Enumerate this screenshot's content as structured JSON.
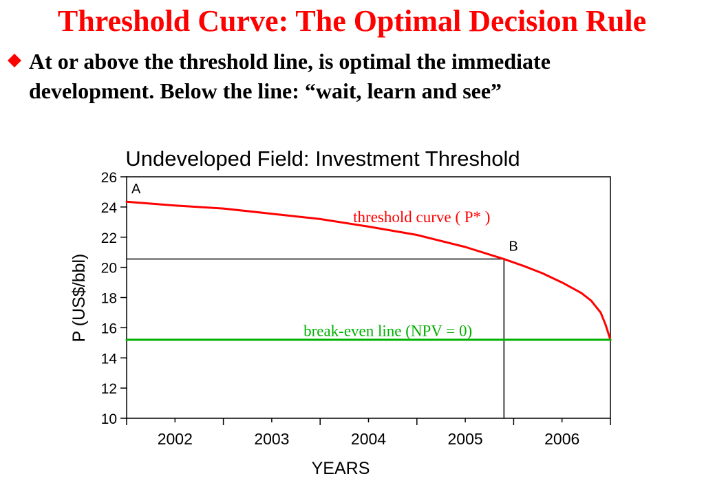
{
  "slide": {
    "title": "Threshold Curve: The Optimal Decision Rule",
    "bullet_icon": "red-diamond-bullet-icon",
    "bullet_line1": "At or above the threshold line, is optimal the immediate",
    "bullet_line2": "development. Below the line: “wait, learn and see”"
  },
  "chart_data": {
    "type": "line",
    "title": "Undeveloped Field: Investment Threshold",
    "xlabel": "YEARS",
    "ylabel": "P (US$/bbl)",
    "xlim": [
      2001.5,
      2006.5
    ],
    "ylim": [
      10,
      26
    ],
    "x_tick_labels": [
      "2002",
      "2003",
      "2004",
      "2005",
      "2006"
    ],
    "y_ticks": [
      10,
      12,
      14,
      16,
      18,
      20,
      22,
      24,
      26
    ],
    "grid": false,
    "series": [
      {
        "name": "threshold curve (P*)",
        "color": "#ff0000",
        "x": [
          2001.5,
          2002.0,
          2002.5,
          2003.0,
          2003.5,
          2004.0,
          2004.5,
          2005.0,
          2005.4,
          2005.6,
          2005.8,
          2006.0,
          2006.2,
          2006.3,
          2006.4,
          2006.45,
          2006.5
        ],
        "y": [
          24.35,
          24.1,
          23.9,
          23.55,
          23.2,
          22.7,
          22.15,
          21.35,
          20.55,
          20.1,
          19.6,
          19.0,
          18.3,
          17.8,
          17.0,
          16.2,
          15.2
        ]
      },
      {
        "name": "break-even line (NPV = 0)",
        "color": "#00b000",
        "x": [
          2001.5,
          2006.5
        ],
        "y": [
          15.2,
          15.2
        ]
      }
    ],
    "reference_lines": {
      "color": "#000000",
      "horizontal_y": 20.55,
      "vertical_x": 2005.4
    },
    "annotations": [
      {
        "text": "A",
        "x": 2001.55,
        "y": 24.9,
        "color": "#000000"
      },
      {
        "text": "B",
        "x": 2005.45,
        "y": 21.1,
        "color": "#000000"
      },
      {
        "text": "threshold curve  ( P* )",
        "x": 2004.55,
        "y": 23.0,
        "color": "#ff0000"
      },
      {
        "text": "break-even line (NPV = 0)",
        "x": 2004.2,
        "y": 15.45,
        "color": "#00b000"
      }
    ]
  }
}
